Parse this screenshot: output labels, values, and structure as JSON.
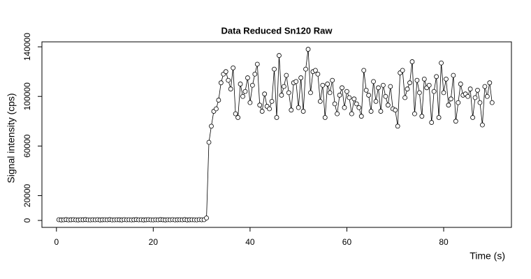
{
  "chart_data": {
    "type": "line",
    "title": "Data Reduced Sn120 Raw",
    "x_label": "Time (s)",
    "y_label": "Signal intensity (cps)",
    "color": "#000000",
    "x": [
      0.5,
      1,
      1.5,
      2,
      2.5,
      3,
      3.5,
      4,
      4.5,
      5,
      5.5,
      6,
      6.5,
      7,
      7.5,
      8,
      8.5,
      9,
      9.5,
      10,
      10.5,
      11,
      11.5,
      12,
      12.5,
      13,
      13.5,
      14,
      14.5,
      15,
      15.5,
      16,
      16.5,
      17,
      17.5,
      18,
      18.5,
      19,
      19.5,
      20,
      20.5,
      21,
      21.5,
      22,
      22.5,
      23,
      23.5,
      24,
      24.5,
      25,
      25.5,
      26,
      26.5,
      27,
      27.5,
      28,
      28.5,
      29,
      29.5,
      30,
      30.5,
      31,
      31.5,
      32,
      32.5,
      33,
      33.5,
      34,
      34.5,
      35,
      35.5,
      36,
      36.5,
      37,
      37.5,
      38,
      38.5,
      39,
      39.5,
      40,
      40.5,
      41,
      41.5,
      42,
      42.5,
      43,
      43.5,
      44,
      44.5,
      45,
      45.5,
      46,
      46.5,
      47,
      47.5,
      48,
      48.5,
      49,
      49.5,
      50,
      50.5,
      51,
      51.5,
      52,
      52.5,
      53,
      53.5,
      54,
      54.5,
      55,
      55.5,
      56,
      56.5,
      57,
      57.5,
      58,
      58.5,
      59,
      59.5,
      60,
      60.5,
      61,
      61.5,
      62,
      62.5,
      63,
      63.5,
      64,
      64.5,
      65,
      65.5,
      66,
      66.5,
      67,
      67.5,
      68,
      68.5,
      69,
      69.5,
      70,
      70.5,
      71,
      71.5,
      72,
      72.5,
      73,
      73.5,
      74,
      74.5,
      75,
      75.5,
      76,
      76.5,
      77,
      77.5,
      78,
      78.5,
      79,
      79.5,
      80,
      80.5,
      81,
      81.5,
      82,
      82.5,
      83,
      83.5,
      84,
      84.5,
      85,
      85.5,
      86,
      86.5,
      87,
      87.5,
      88,
      88.5,
      89,
      89.5,
      90
    ],
    "values": [
      600,
      400,
      500,
      700,
      450,
      550,
      650,
      500,
      400,
      600,
      550,
      700,
      500,
      450,
      600,
      500,
      650,
      400,
      550,
      600,
      500,
      700,
      450,
      500,
      600,
      550,
      400,
      650,
      500,
      600,
      450,
      550,
      700,
      500,
      600,
      400,
      550,
      650,
      500,
      450,
      600,
      500,
      700,
      550,
      400,
      600,
      500,
      650,
      450,
      550,
      600,
      500,
      700,
      400,
      550,
      600,
      500,
      450,
      650,
      500,
      600,
      2000,
      63000,
      76000,
      88000,
      90000,
      97000,
      111000,
      118000,
      120000,
      113000,
      106000,
      123000,
      86000,
      83000,
      110000,
      100000,
      104000,
      115000,
      95000,
      109000,
      118000,
      126000,
      93000,
      88000,
      102000,
      92000,
      90000,
      96000,
      122000,
      83000,
      133000,
      101000,
      108000,
      117000,
      103000,
      89000,
      111000,
      112000,
      91000,
      115000,
      88000,
      122000,
      138000,
      103000,
      120000,
      121000,
      118000,
      96000,
      109000,
      83000,
      110000,
      103000,
      113000,
      94000,
      86000,
      101000,
      107000,
      91000,
      104000,
      99000,
      86000,
      98000,
      94000,
      91000,
      84000,
      121000,
      105000,
      101000,
      88000,
      112000,
      96000,
      107000,
      88000,
      109000,
      100000,
      93000,
      108000,
      90000,
      89000,
      76000,
      119000,
      121000,
      99000,
      106000,
      111000,
      128000,
      86000,
      113000,
      103000,
      84000,
      114000,
      107000,
      109000,
      79000,
      104000,
      116000,
      83000,
      127000,
      103000,
      114000,
      93000,
      98000,
      117000,
      80000,
      95000,
      110000,
      101000,
      102000,
      100000,
      106000,
      83000,
      99000,
      105000,
      95000,
      77000,
      108000,
      100000,
      111000,
      95000
    ],
    "xlim": [
      -3,
      94
    ],
    "ylim": [
      -5600,
      144000
    ],
    "xticks": [
      0,
      20,
      40,
      60,
      80
    ],
    "yticks": [
      0,
      20000,
      60000,
      100000,
      140000
    ]
  }
}
